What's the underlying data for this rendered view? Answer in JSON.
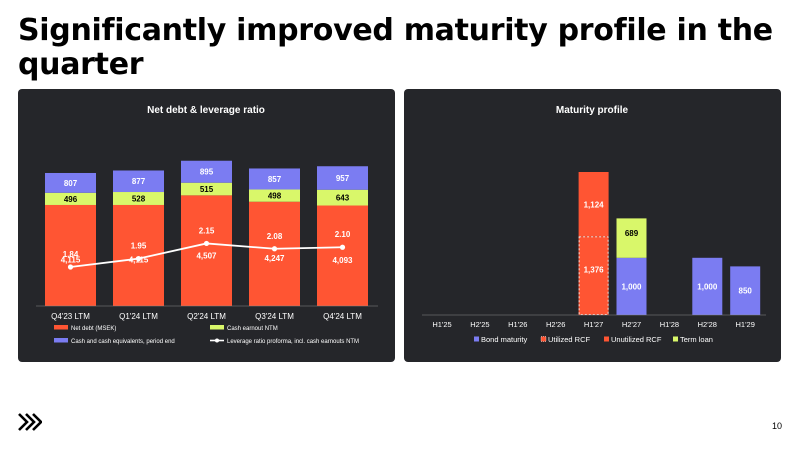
{
  "slide": {
    "title": "Significantly improved maturity profile in the quarter",
    "page_number": "10",
    "logo": "brand-logo-icon"
  },
  "colors": {
    "panel_bg": "#25262a",
    "net_debt": "#ff5533",
    "cash_earnout": "#d9f76a",
    "cash": "#7b7cf2",
    "leverage_line": "#ffffff",
    "bond_maturity": "#7b7cf2",
    "utilized_rcf": "#ff5533",
    "unutilized_rcf": "#ff5533",
    "term_loan": "#d9f76a"
  },
  "chart_data": [
    {
      "type": "bar",
      "stacked": true,
      "title": "Net debt & leverage ratio",
      "categories": [
        "Q4'23 LTM",
        "Q1'24 LTM",
        "Q2'24 LTM",
        "Q3'24 LTM",
        "Q4'24 LTM"
      ],
      "series": [
        {
          "name": "Net debt (MSEK)",
          "values": [
            4115,
            4115,
            4507,
            4247,
            4093
          ],
          "labels": [
            "4,115",
            "4,115",
            "4,507",
            "4,247",
            "4,093"
          ]
        },
        {
          "name": "Cash earnout NTM",
          "values": [
            496,
            528,
            515,
            498,
            643
          ],
          "labels": [
            "496",
            "528",
            "515",
            "498",
            "643"
          ]
        },
        {
          "name": "Cash and cash equivalents, period end",
          "values": [
            807,
            877,
            895,
            857,
            957
          ],
          "labels": [
            "807",
            "877",
            "895",
            "857",
            "957"
          ]
        }
      ],
      "line": {
        "name": "Leverage ratio proforma, incl. cash earnouts NTM",
        "values": [
          1.84,
          1.95,
          2.15,
          2.08,
          2.1
        ],
        "labels": [
          "1.84",
          "1.95",
          "2.15",
          "2.08",
          "2.10"
        ]
      },
      "legend_position": "bottom",
      "grid": false
    },
    {
      "type": "bar",
      "stacked": true,
      "title": "Maturity profile",
      "categories": [
        "H1'25",
        "H2'25",
        "H1'26",
        "H2'26",
        "H1'27",
        "H2'27",
        "H1'28",
        "H2'28",
        "H1'29"
      ],
      "series": [
        {
          "name": "Bond maturity",
          "values": [
            0,
            0,
            0,
            0,
            0,
            1000,
            0,
            1000,
            850
          ],
          "labels": [
            "",
            "",
            "",
            "",
            "",
            "1,000",
            "",
            "1,000",
            "850"
          ]
        },
        {
          "name": "Utilized RCF",
          "values": [
            0,
            0,
            0,
            0,
            1376,
            0,
            0,
            0,
            0
          ],
          "labels": [
            "",
            "",
            "",
            "",
            "1,376",
            "",
            "",
            "",
            ""
          ]
        },
        {
          "name": "Unutilized RCF",
          "values": [
            0,
            0,
            0,
            0,
            1124,
            0,
            0,
            0,
            0
          ],
          "labels": [
            "",
            "",
            "",
            "",
            "1,124",
            "",
            "",
            "",
            ""
          ]
        },
        {
          "name": "Term loan",
          "values": [
            0,
            0,
            0,
            0,
            0,
            689,
            0,
            0,
            0
          ],
          "labels": [
            "",
            "",
            "",
            "",
            "",
            "689",
            "",
            "",
            ""
          ]
        }
      ],
      "legend_position": "bottom",
      "grid": false
    }
  ]
}
